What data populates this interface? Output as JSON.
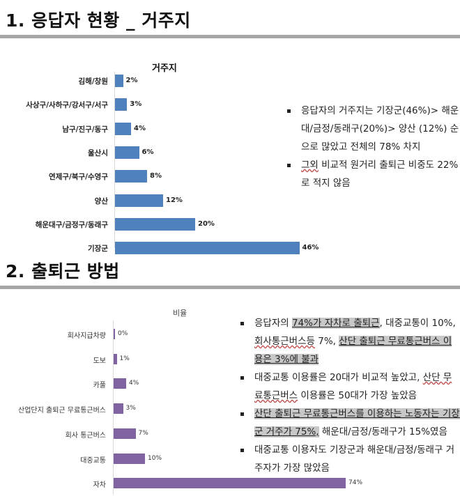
{
  "section1": {
    "title": "1. 응답자 현황 _ 거주지",
    "bullets": [
      "응답자의 거주지는 기장군(46%)> 해운대/금정/동래구(20%)>양산 (12%) 순으로 많았고 전체의 78% 차지",
      "그외 비교적 원거리 출퇴근 비중도 22%로 적지 않음"
    ],
    "bullet_parts": {
      "b1": "응답자의 거주지는 기장군(46%)> 해운대/금정/동래구(20%)> 양산 (12%) 순으로 많았고 전체의 78% 차지",
      "b2_ul": "그외",
      "b2_rest": " 비교적 원거리 출퇴근 비중도 22%로 적지 않음"
    }
  },
  "section2": {
    "title": "2. 출퇴근 방법",
    "bullet_parts": {
      "b1_a": "응답자의 ",
      "b1_hl1": "74%가 자차로 출퇴근",
      "b1_b": ", 대중교통이 10%, ",
      "b1_ul": "회사통근버스등",
      "b1_c": " 7%, ",
      "b1_hl2": "산단 출퇴근 무료통근버스 이용은 3%에 불과",
      "b2_a": "대중교통 이용률은 20대가 비교적 높았고, ",
      "b2_ul": "산단 무료통근버스",
      "b2_b": " 이용률은 50대가 가장 높았음",
      "b3_hl": "산단 출퇴근 무료통근버스를 이용하는 노동자는 기장군 거주가 75%,",
      "b3_b": " 해운대/금정/동래구가 15%였음",
      "b4": "대중교통 이용자도 기장군과 해운대/금정/동래구 거주자가 가장 많았음"
    }
  },
  "chart_data": [
    {
      "type": "bar",
      "orientation": "horizontal",
      "title": "거주지",
      "categories": [
        "김해/창원",
        "사상구/사하구/강서구/서구",
        "남구/진구/동구",
        "울산시",
        "연제구/북구/수영구",
        "양산",
        "해운대구/금정구/동래구",
        "기장군"
      ],
      "values": [
        2,
        3,
        4,
        6,
        8,
        12,
        20,
        46
      ],
      "value_labels": [
        "2%",
        "3%",
        "4%",
        "6%",
        "8%",
        "12%",
        "20%",
        "46%"
      ],
      "unit": "%",
      "color": "#4f81bd",
      "xlabel": "",
      "ylabel": "",
      "grid": false,
      "legend": null
    },
    {
      "type": "bar",
      "orientation": "horizontal",
      "title": "비율",
      "categories": [
        "회사지급차량",
        "도보",
        "카풀",
        "산업단지 출퇴근 무료통근버스",
        "회사 통근버스",
        "대중교통",
        "자차"
      ],
      "values": [
        0,
        1,
        4,
        3,
        7,
        10,
        74
      ],
      "value_labels": [
        "0%",
        "1%",
        "4%",
        "3%",
        "7%",
        "10%",
        "74%"
      ],
      "unit": "%",
      "color": "#8064a2",
      "xlabel": "",
      "ylabel": "",
      "grid": false,
      "legend": null
    }
  ]
}
